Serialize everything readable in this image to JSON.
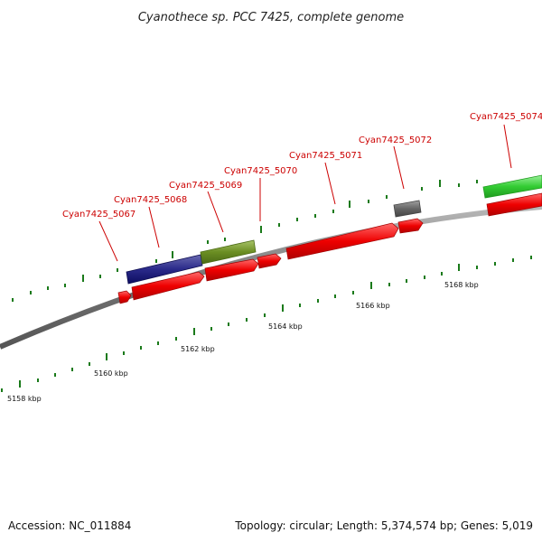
{
  "title": "Cyanothece sp. PCC 7425, complete genome",
  "footer": {
    "accession": "Accession: NC_011884",
    "summary": "Topology: circular; Length: 5,374,574 bp; Genes: 5,019"
  },
  "colors": {
    "backbone": "#8a8a8a",
    "tick": "#1a7a1a",
    "label": "#cc0000",
    "leader": "#cc0000",
    "red_gene": "#ee0000",
    "blue_gene": "#1a1a80",
    "olive_gene": "#6b8e23",
    "gray_gene": "#666666",
    "green_gene": "#33cc33"
  },
  "kbp_labels": [
    "5158 kbp",
    "5160 kbp",
    "5162 kbp",
    "5164 kbp",
    "5166 kbp",
    "5168 kbp"
  ],
  "gene_labels": [
    "Cyan7425_5067",
    "Cyan7425_5068",
    "Cyan7425_5069",
    "Cyan7425_5070",
    "Cyan7425_5071",
    "Cyan7425_5072",
    "Cyan7425_5074"
  ]
}
